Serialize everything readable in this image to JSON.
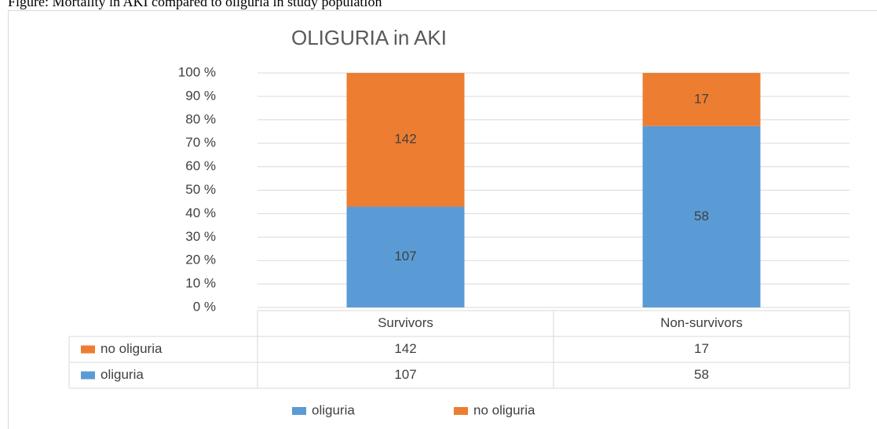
{
  "chart_data": {
    "type": "bar",
    "stacking": "percent",
    "caption": "Figure: Mortality in AKI compared to oliguria in study population",
    "title": "OLIGURIA in AKI",
    "categories": [
      "Survivors",
      "Non-survivors"
    ],
    "series": [
      {
        "name": "oliguria",
        "color": "#5b9bd5",
        "values": [
          107,
          58
        ]
      },
      {
        "name": "no oliguria",
        "color": "#ed7d31",
        "values": [
          142,
          17
        ]
      }
    ],
    "ylim": [
      0,
      100
    ],
    "yticks": [
      {
        "value": 0,
        "label": "0 %"
      },
      {
        "value": 10,
        "label": "10 %"
      },
      {
        "value": 20,
        "label": "20 %"
      },
      {
        "value": 30,
        "label": "30 %"
      },
      {
        "value": 40,
        "label": "40 %"
      },
      {
        "value": 50,
        "label": "50 %"
      },
      {
        "value": 60,
        "label": "60 %"
      },
      {
        "value": 70,
        "label": "70 %"
      },
      {
        "value": 80,
        "label": "80 %"
      },
      {
        "value": 90,
        "label": "90 %"
      },
      {
        "value": 100,
        "label": "100 %"
      }
    ],
    "grid": true,
    "legend": "bottom",
    "data_table": true
  }
}
